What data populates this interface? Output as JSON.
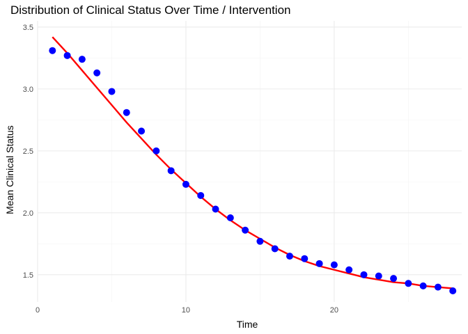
{
  "chart_data": {
    "type": "scatter",
    "title": "Distribution of Clinical Status Over Time / Intervention",
    "xlabel": "Time",
    "ylabel": "Mean Clinical Status",
    "xlim": [
      0,
      28.6
    ],
    "ylim": [
      1.28,
      3.55
    ],
    "x_ticks": [
      0,
      10,
      20
    ],
    "y_ticks": [
      1.5,
      2.0,
      2.5,
      3.0,
      3.5
    ],
    "x_tick_labels": [
      "0",
      "10",
      "20"
    ],
    "y_tick_labels": [
      "1.5",
      "2.0",
      "2.5",
      "3.0",
      "3.5"
    ],
    "grid": true,
    "series": [
      {
        "kind": "points",
        "color": "#0000ff",
        "x": [
          1,
          2,
          3,
          4,
          5,
          6,
          7,
          8,
          9,
          10,
          11,
          12,
          13,
          14,
          15,
          16,
          17,
          18,
          19,
          20,
          21,
          22,
          23,
          24,
          25,
          26,
          27,
          28
        ],
        "y": [
          3.31,
          3.27,
          3.24,
          3.13,
          2.98,
          2.81,
          2.66,
          2.5,
          2.34,
          2.23,
          2.14,
          2.03,
          1.96,
          1.86,
          1.77,
          1.71,
          1.65,
          1.63,
          1.59,
          1.58,
          1.54,
          1.5,
          1.49,
          1.47,
          1.43,
          1.41,
          1.4,
          1.37
        ]
      },
      {
        "kind": "fit-line",
        "color": "#ff0000",
        "x": [
          1,
          2,
          3,
          4,
          5,
          6,
          7,
          8,
          9,
          10,
          11,
          12,
          13,
          14,
          15,
          16,
          17,
          18,
          19,
          20,
          21,
          22,
          23,
          24,
          25,
          26,
          27,
          28
        ],
        "y": [
          3.42,
          3.29,
          3.15,
          3.01,
          2.87,
          2.73,
          2.6,
          2.47,
          2.35,
          2.24,
          2.13,
          2.03,
          1.94,
          1.86,
          1.79,
          1.72,
          1.66,
          1.61,
          1.57,
          1.54,
          1.51,
          1.48,
          1.46,
          1.44,
          1.43,
          1.41,
          1.4,
          1.39
        ]
      }
    ]
  }
}
